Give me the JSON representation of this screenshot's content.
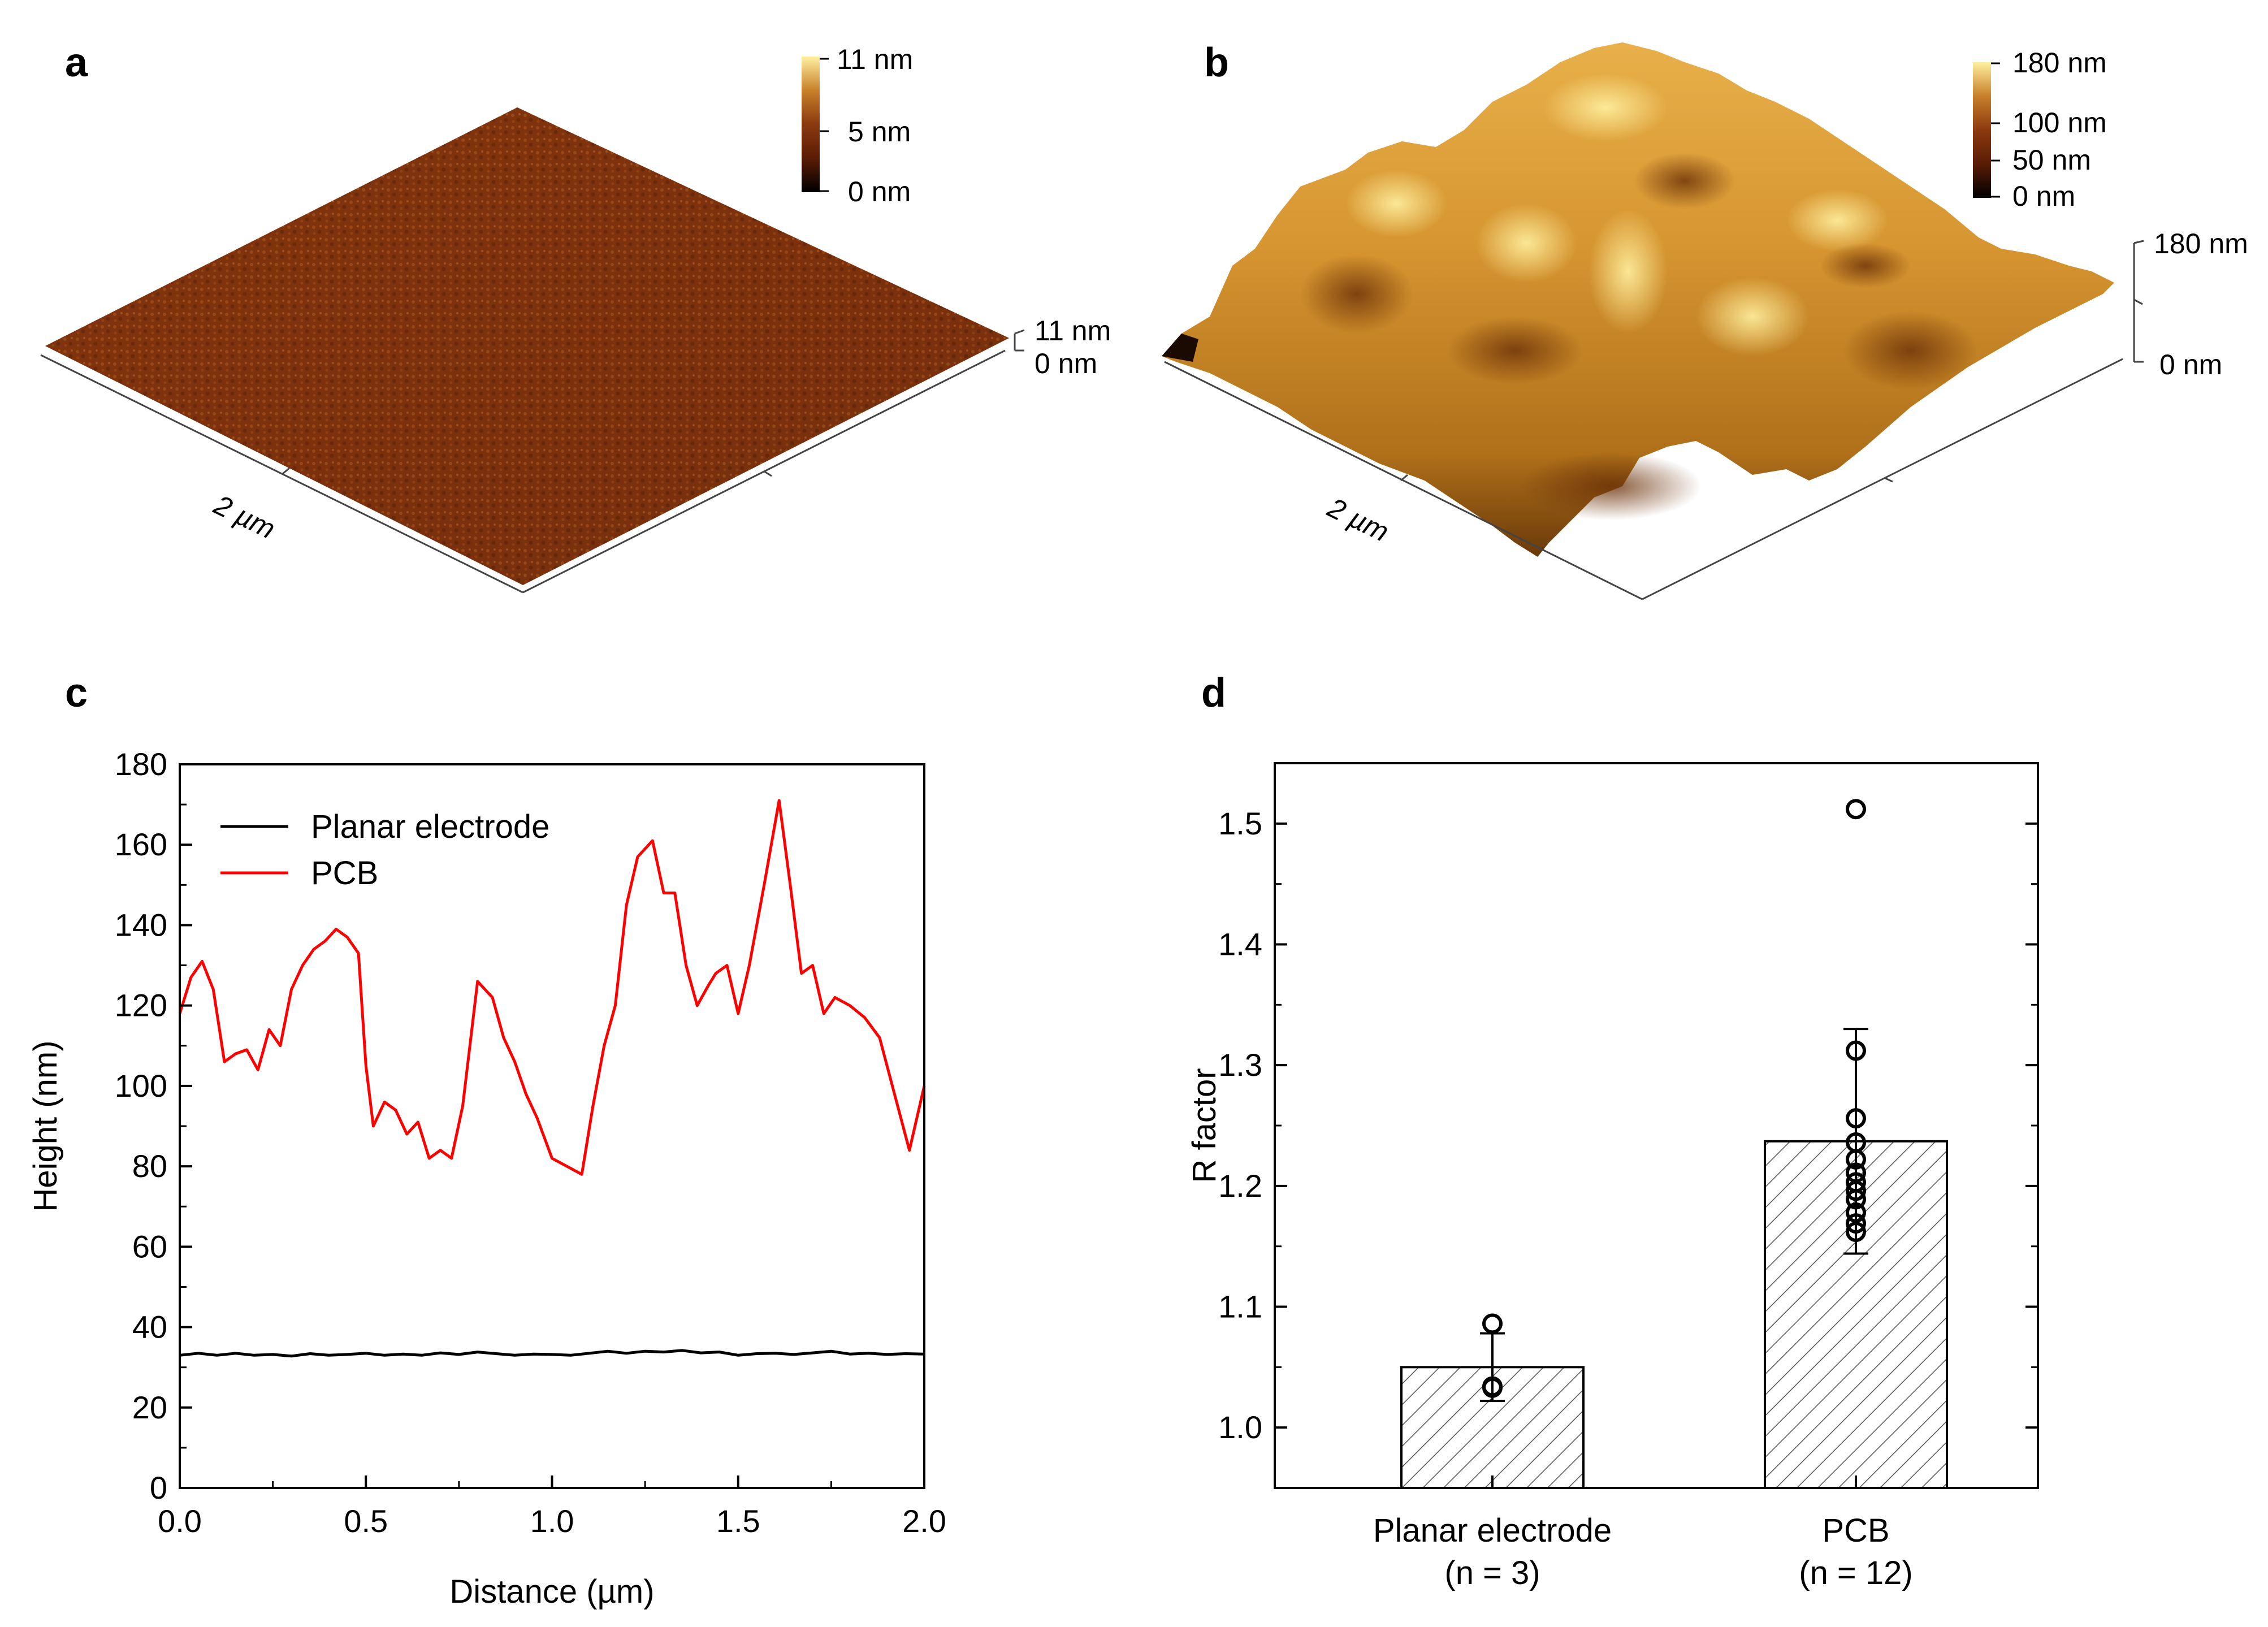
{
  "panels": {
    "a": {
      "letter": "a",
      "colorbar_labels": [
        "11 nm",
        "5 nm",
        "0 nm"
      ],
      "z_labels": [
        "11 nm",
        "0 nm"
      ],
      "scale_label": "2 µm",
      "colormap": [
        "#000000",
        "#5a1c05",
        "#8b3a0f",
        "#c07020",
        "#e8b840",
        "#fff2a0"
      ]
    },
    "b": {
      "letter": "b",
      "colorbar_labels": [
        "180 nm",
        "100 nm",
        "50 nm",
        "0 nm"
      ],
      "z_labels": [
        "180 nm",
        "0 nm"
      ],
      "scale_label": "2 µm"
    },
    "c": {
      "letter": "c"
    },
    "d": {
      "letter": "d"
    }
  },
  "chart_data": [
    {
      "panel": "c",
      "type": "line",
      "xlabel": "Distance (µm)",
      "ylabel": "Height (nm)",
      "xlim": [
        0,
        2.0
      ],
      "ylim": [
        0,
        180
      ],
      "xticks": [
        "0.0",
        "0.5",
        "1.0",
        "1.5",
        "2.0"
      ],
      "yticks": [
        "0",
        "20",
        "40",
        "60",
        "80",
        "100",
        "120",
        "140",
        "160",
        "180"
      ],
      "legend_position": "top-left",
      "series": [
        {
          "name": "Planar electrode",
          "color": "#000000",
          "x": [
            0.0,
            0.05,
            0.1,
            0.15,
            0.2,
            0.25,
            0.3,
            0.35,
            0.4,
            0.45,
            0.5,
            0.55,
            0.6,
            0.65,
            0.7,
            0.75,
            0.8,
            0.85,
            0.9,
            0.95,
            1.0,
            1.05,
            1.1,
            1.15,
            1.2,
            1.25,
            1.3,
            1.35,
            1.4,
            1.45,
            1.5,
            1.55,
            1.6,
            1.65,
            1.7,
            1.75,
            1.8,
            1.85,
            1.9,
            1.95,
            2.0
          ],
          "y": [
            33,
            33.5,
            33,
            33.5,
            33,
            33.2,
            32.8,
            33.4,
            33,
            33.2,
            33.5,
            33,
            33.3,
            33,
            33.6,
            33.2,
            33.8,
            33.4,
            33,
            33.3,
            33.2,
            33,
            33.5,
            34,
            33.5,
            34,
            33.8,
            34.2,
            33.6,
            33.8,
            33,
            33.4,
            33.5,
            33.2,
            33.6,
            34,
            33.3,
            33.5,
            33.2,
            33.4,
            33.3
          ]
        },
        {
          "name": "PCB",
          "color": "#ff0000",
          "x": [
            0.0,
            0.03,
            0.06,
            0.09,
            0.12,
            0.15,
            0.18,
            0.21,
            0.24,
            0.27,
            0.3,
            0.33,
            0.36,
            0.39,
            0.42,
            0.45,
            0.48,
            0.5,
            0.52,
            0.55,
            0.58,
            0.61,
            0.64,
            0.67,
            0.7,
            0.73,
            0.76,
            0.8,
            0.84,
            0.87,
            0.9,
            0.93,
            0.96,
            1.0,
            1.04,
            1.08,
            1.11,
            1.14,
            1.17,
            1.2,
            1.23,
            1.27,
            1.3,
            1.33,
            1.36,
            1.39,
            1.42,
            1.44,
            1.47,
            1.5,
            1.53,
            1.57,
            1.61,
            1.64,
            1.67,
            1.7,
            1.73,
            1.76,
            1.8,
            1.84,
            1.88,
            1.92,
            1.96,
            2.0
          ],
          "y": [
            118,
            127,
            131,
            124,
            106,
            108,
            109,
            104,
            114,
            110,
            124,
            130,
            134,
            136,
            139,
            137,
            133,
            105,
            90,
            96,
            94,
            88,
            91,
            82,
            84,
            82,
            95,
            126,
            122,
            112,
            106,
            98,
            92,
            82,
            80,
            78,
            95,
            110,
            120,
            145,
            157,
            161,
            148,
            148,
            130,
            120,
            125,
            128,
            130,
            118,
            130,
            150,
            171,
            150,
            128,
            130,
            118,
            122,
            120,
            117,
            112,
            98,
            84,
            100
          ]
        }
      ]
    },
    {
      "panel": "d",
      "type": "bar",
      "ylabel": "R factor",
      "ylim": [
        0.95,
        1.55
      ],
      "yticks": [
        "1.0",
        "1.1",
        "1.2",
        "1.3",
        "1.4",
        "1.5"
      ],
      "categories": [
        "Planar electrode",
        "PCB"
      ],
      "category_notes": [
        "(n = 3)",
        "(n = 12)"
      ],
      "values": [
        1.05,
        1.237
      ],
      "error": [
        0.028,
        0.093
      ],
      "points": [
        [
          1.086,
          1.034,
          1.033
        ],
        [
          1.512,
          1.312,
          1.256,
          1.236,
          1.222,
          1.211,
          1.203,
          1.196,
          1.189,
          1.178,
          1.169,
          1.162
        ]
      ],
      "bar_fill": "hatched"
    }
  ]
}
